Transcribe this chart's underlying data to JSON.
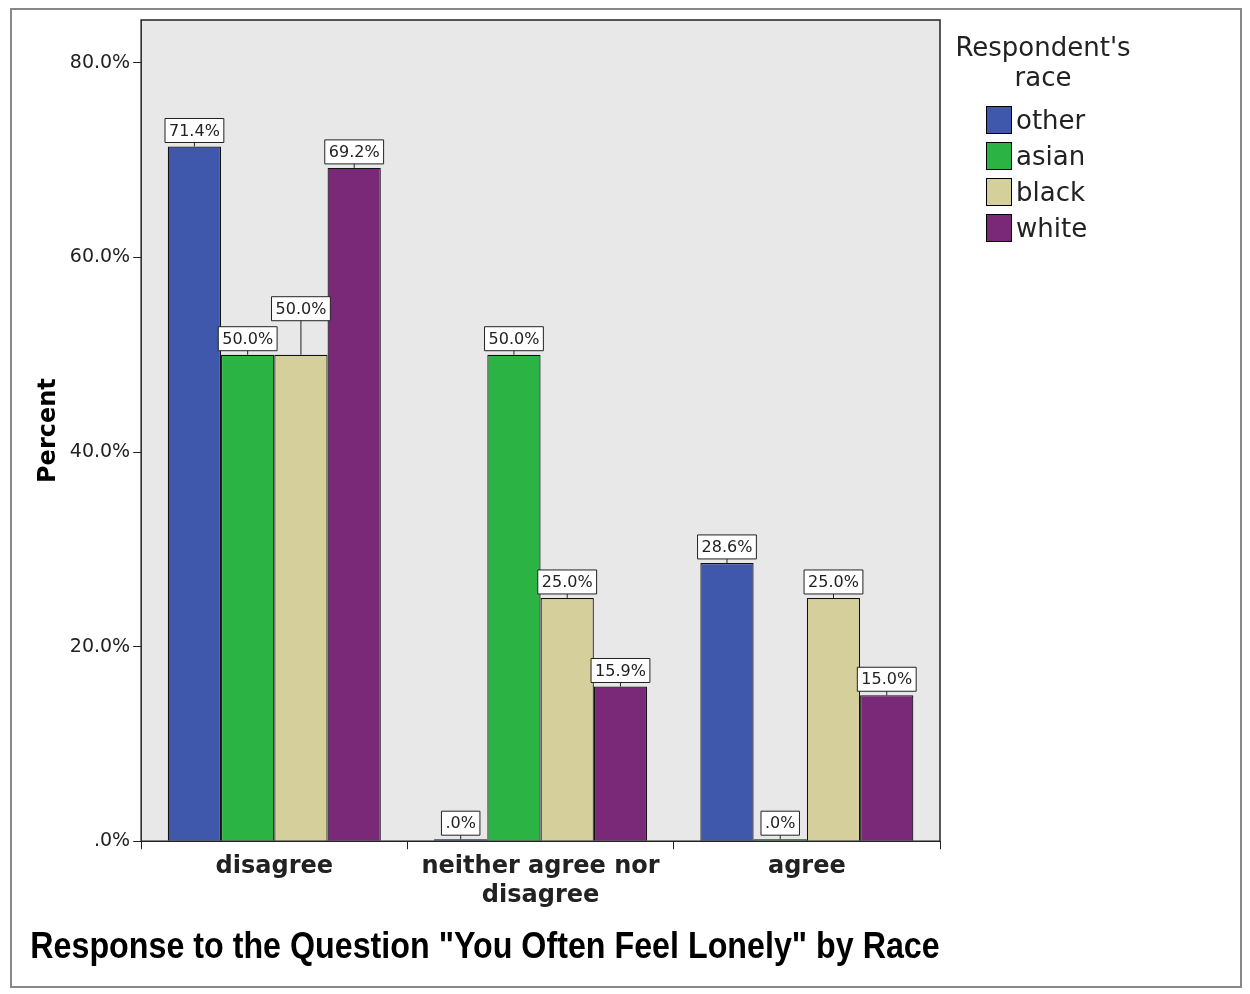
{
  "chart_data": {
    "type": "bar",
    "title": "Response to the Question \"You Often Feel Lonely\" by Race",
    "ylabel": "Percent",
    "legend_title": "Respondent's race",
    "categories": [
      "disagree",
      "neither agree nor disagree",
      "agree"
    ],
    "series": [
      {
        "name": "other",
        "color": "#3f58ab",
        "values": [
          71.4,
          0,
          28.6
        ],
        "value_labels": [
          "71.4%",
          ".0%",
          "28.6%"
        ]
      },
      {
        "name": "asian",
        "color": "#2bb443",
        "values": [
          50,
          50,
          0
        ],
        "value_labels": [
          "50.0%",
          "50.0%",
          ".0%"
        ]
      },
      {
        "name": "black",
        "color": "#d5cf9b",
        "values": [
          50,
          25,
          25
        ],
        "value_labels": [
          "50.0%",
          "25.0%",
          "25.0%"
        ]
      },
      {
        "name": "white",
        "color": "#7a2878",
        "values": [
          69.2,
          15.9,
          15
        ],
        "value_labels": [
          "69.2%",
          "15.9%",
          "15.0%"
        ]
      }
    ],
    "ylim": [
      0,
      84.4
    ],
    "yticks": [
      {
        "value": 0,
        "label": ".0%"
      },
      {
        "value": 20,
        "label": "20.0%"
      },
      {
        "value": 40,
        "label": "40.0%"
      },
      {
        "value": 60,
        "label": "60.0%"
      },
      {
        "value": 80,
        "label": "80.0%"
      }
    ],
    "grid": false,
    "legend": "top right"
  }
}
